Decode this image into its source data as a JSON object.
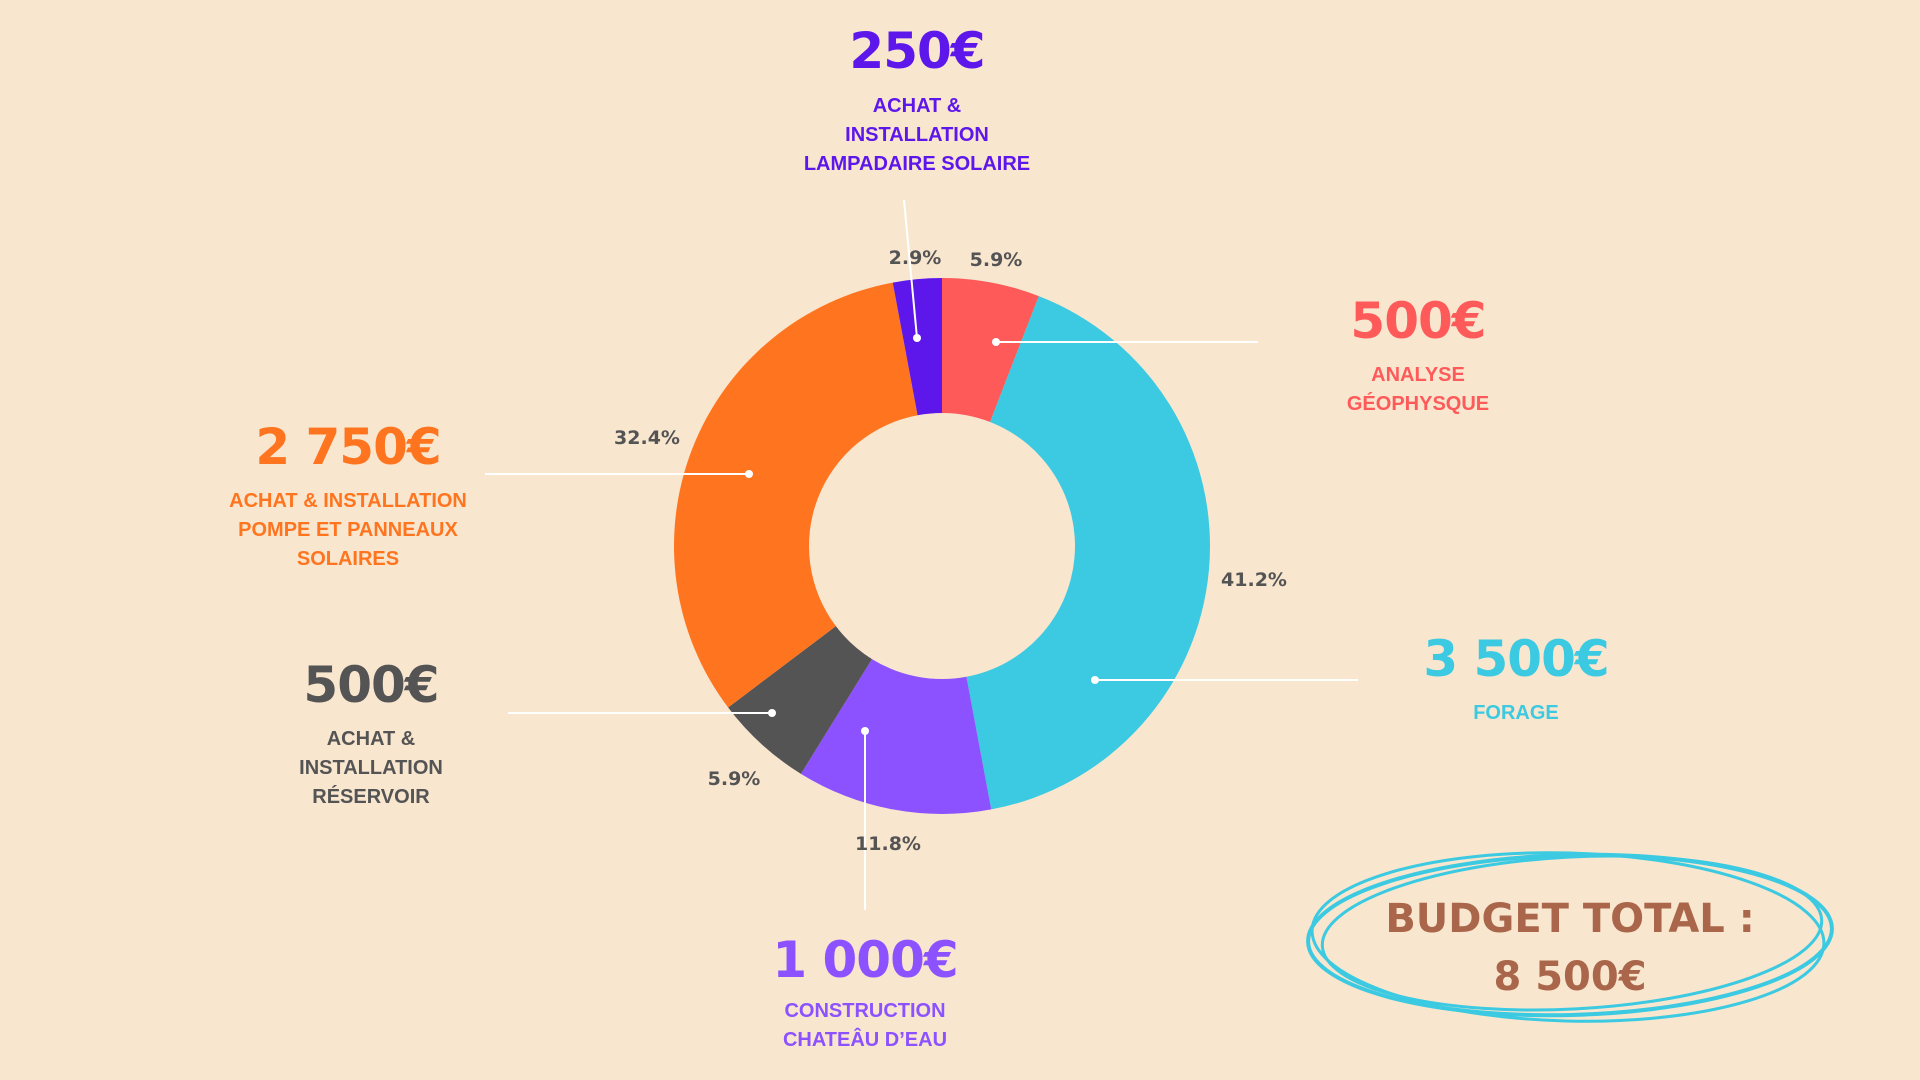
{
  "chart_data": {
    "type": "donut",
    "total_label": "BUDGET TOTAL :\n8 500€",
    "slices": [
      {
        "key": "analyse",
        "value": 500,
        "percent": "5.9%",
        "amount": "500€",
        "label": "ANALYSE\nGÉOPHYSQUE",
        "color": "#fe5a5a"
      },
      {
        "key": "forage",
        "value": 3500,
        "percent": "41.2%",
        "amount": "3 500€",
        "label": "FORAGE",
        "color": "#3bcae1"
      },
      {
        "key": "chateau",
        "value": 1000,
        "percent": "11.8%",
        "amount": "1 000€",
        "label": "CONSTRUCTION\nCHATEÂU D’EAU",
        "color": "#8c52ff"
      },
      {
        "key": "reservoir",
        "value": 500,
        "percent": "5.9%",
        "amount": "500€",
        "label": "ACHAT &\nINSTALLATION\nRÉSERVOIR",
        "color": "#545454"
      },
      {
        "key": "pompe",
        "value": 2750,
        "percent": "32.4%",
        "amount": "2 750€",
        "label": "ACHAT & INSTALLATION\nPOMPE  ET PANNEAUX\nSOLAIRES",
        "color": "#ff751f"
      },
      {
        "key": "lampadaire",
        "value": 250,
        "percent": "2.9%",
        "amount": "250€",
        "label": "ACHAT &\nINSTALLATION\nLAMPADAIRE SOLAIRE",
        "color": "#5e17eb"
      }
    ],
    "percent_label_color": "#545454",
    "background": "#f8e6cf",
    "total_color": "#a9664a",
    "total_ring_color": "#3bcae1"
  }
}
